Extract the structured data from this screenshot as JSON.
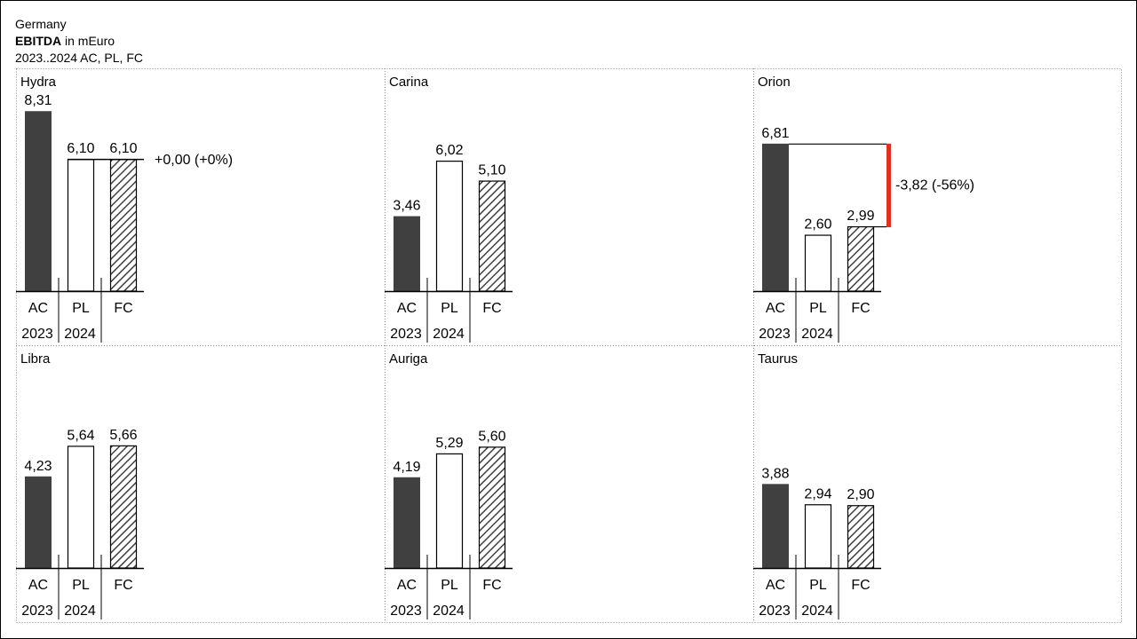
{
  "header": {
    "region": "Germany",
    "measure_bold": "EBITDA",
    "measure_unit": " in mEuro",
    "period": "2023..2024 AC, PL, FC"
  },
  "colors": {
    "ac": "#404040",
    "pl": "#ffffff",
    "fc_hatch": "#404040",
    "negative_delta": "#e03020",
    "grid": "#999999"
  },
  "chart_data": {
    "type": "bar",
    "scenarios": [
      "AC",
      "PL",
      "FC"
    ],
    "years": [
      "2023",
      "2024"
    ],
    "scenario_year": {
      "AC": "2023",
      "PL": "2024",
      "FC": "2024"
    },
    "panels": [
      {
        "name": "Hydra",
        "values": [
          8.31,
          6.1,
          6.1
        ],
        "labels": [
          "8,31",
          "6,10",
          "6,10"
        ],
        "delta": {
          "label": "+0,00 (+0%)",
          "from": "PL",
          "to": "FC",
          "sign": "zero"
        }
      },
      {
        "name": "Carina",
        "values": [
          3.46,
          6.02,
          5.1
        ],
        "labels": [
          "3,46",
          "6,02",
          "5,10"
        ]
      },
      {
        "name": "Orion",
        "values": [
          6.81,
          2.6,
          2.99
        ],
        "labels": [
          "6,81",
          "2,60",
          "2,99"
        ],
        "delta": {
          "label": "-3,82 (-56%)",
          "from": "AC",
          "to": "FC",
          "sign": "negative"
        }
      },
      {
        "name": "Libra",
        "values": [
          4.23,
          5.64,
          5.66
        ],
        "labels": [
          "4,23",
          "5,64",
          "5,66"
        ]
      },
      {
        "name": "Auriga",
        "values": [
          4.19,
          5.29,
          5.6
        ],
        "labels": [
          "4,19",
          "5,29",
          "5,60"
        ]
      },
      {
        "name": "Taurus",
        "values": [
          3.88,
          2.94,
          2.9
        ],
        "labels": [
          "3,88",
          "2,94",
          "2,90"
        ]
      }
    ]
  }
}
